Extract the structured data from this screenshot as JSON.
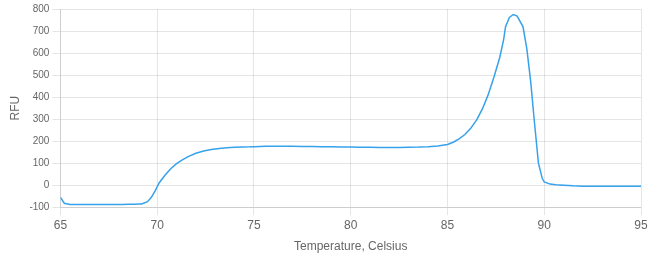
{
  "chart_data": {
    "type": "line",
    "xlabel": "Temperature, Celsius",
    "ylabel": "RFU",
    "xlim": [
      65,
      95
    ],
    "ylim": [
      -100,
      800
    ],
    "xticks": [
      65,
      70,
      75,
      80,
      85,
      90,
      95
    ],
    "yticks": [
      -100,
      0,
      100,
      200,
      300,
      400,
      500,
      600,
      700,
      800
    ],
    "grid": true,
    "x": [
      65.0,
      65.2,
      65.5,
      65.8,
      66.1,
      66.4,
      66.7,
      67.0,
      67.3,
      67.6,
      67.9,
      68.2,
      68.5,
      68.8,
      69.0,
      69.2,
      69.5,
      69.7,
      69.9,
      70.1,
      70.4,
      70.7,
      71.0,
      71.3,
      71.6,
      72.0,
      72.4,
      72.8,
      73.2,
      73.6,
      74.0,
      74.4,
      74.8,
      75.0,
      75.3,
      75.6,
      76.0,
      76.5,
      77.0,
      77.5,
      78.0,
      78.5,
      79.0,
      79.5,
      80.0,
      80.5,
      81.0,
      81.5,
      82.0,
      82.5,
      83.0,
      83.5,
      84.0,
      84.5,
      85.0,
      85.3,
      85.6,
      85.9,
      86.2,
      86.5,
      86.8,
      87.1,
      87.4,
      87.7,
      87.9,
      88.0,
      88.2,
      88.4,
      88.6,
      88.9,
      89.1,
      89.3,
      89.5,
      89.7,
      89.9,
      90.0,
      90.3,
      90.6,
      91.0,
      91.5,
      92.0,
      92.5,
      93.0,
      93.5,
      94.0,
      94.5,
      95.0
    ],
    "values": [
      -55,
      -82,
      -88,
      -88,
      -88,
      -88,
      -88,
      -88,
      -88,
      -88,
      -88,
      -88,
      -87,
      -87,
      -86,
      -85,
      -75,
      -55,
      -25,
      10,
      45,
      75,
      98,
      115,
      130,
      145,
      155,
      162,
      167,
      170,
      172,
      173,
      174,
      175,
      176,
      177,
      177,
      177,
      177,
      176,
      176,
      175,
      174,
      173,
      173,
      172,
      172,
      171,
      171,
      171,
      172,
      173,
      175,
      178,
      185,
      195,
      210,
      230,
      258,
      295,
      345,
      410,
      490,
      580,
      660,
      720,
      762,
      775,
      768,
      720,
      620,
      470,
      280,
      100,
      30,
      15,
      5,
      2,
      0,
      -3,
      -5,
      -5,
      -5,
      -5,
      -5,
      -5,
      -5
    ]
  }
}
